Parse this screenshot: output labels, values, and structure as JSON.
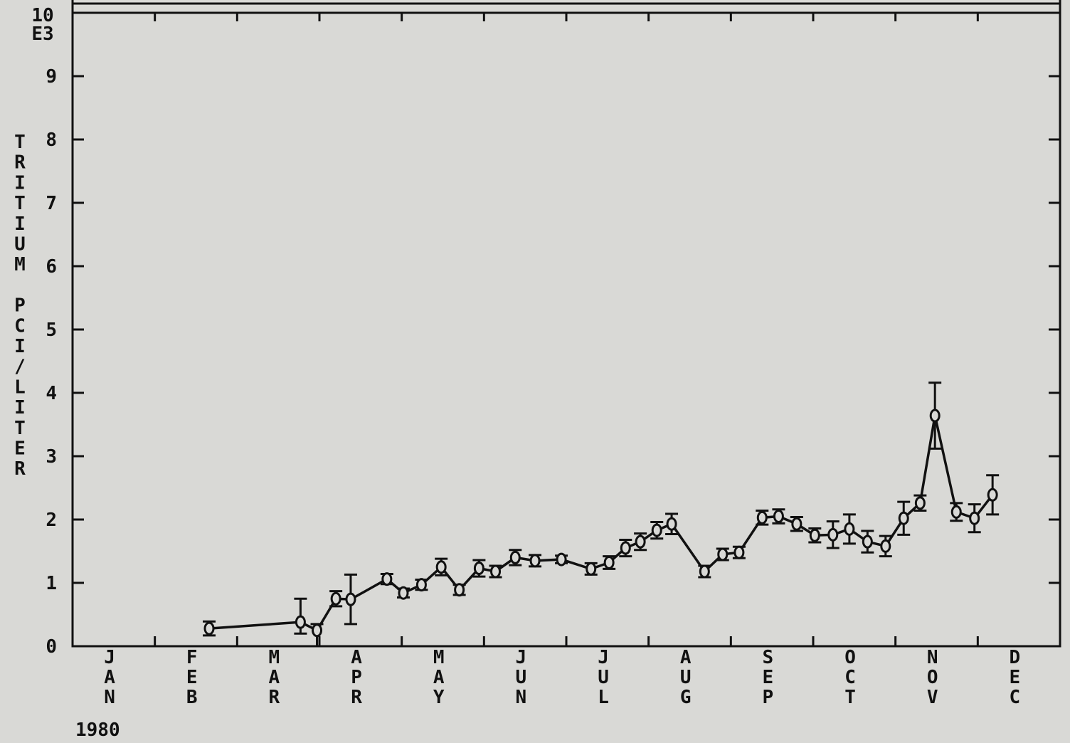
{
  "chart_data": {
    "type": "line",
    "title": "",
    "ylabel": "TRITIUM PCI/LITER",
    "ylabel_chars": [
      "T",
      "R",
      "I",
      "T",
      "I",
      "U",
      "M",
      "",
      "P",
      "C",
      "I",
      "/",
      "L",
      "I",
      "T",
      "E",
      "R"
    ],
    "y_multiplier_label": [
      "10",
      "E3"
    ],
    "xlabel": "",
    "year_label": "1980",
    "ylim": [
      0,
      10
    ],
    "xlim": [
      0,
      12
    ],
    "y_ticks": [
      "0",
      "1",
      "2",
      "3",
      "4",
      "5",
      "6",
      "7",
      "8",
      "9"
    ],
    "months": [
      {
        "label": "JAN",
        "letters": [
          "J",
          "A",
          "N"
        ]
      },
      {
        "label": "FEB",
        "letters": [
          "F",
          "E",
          "B"
        ]
      },
      {
        "label": "MAR",
        "letters": [
          "M",
          "A",
          "R"
        ]
      },
      {
        "label": "APR",
        "letters": [
          "A",
          "P",
          "R"
        ]
      },
      {
        "label": "MAY",
        "letters": [
          "M",
          "A",
          "Y"
        ]
      },
      {
        "label": "JUN",
        "letters": [
          "J",
          "U",
          "N"
        ]
      },
      {
        "label": "JUL",
        "letters": [
          "J",
          "U",
          "L"
        ]
      },
      {
        "label": "AUG",
        "letters": [
          "A",
          "U",
          "G"
        ]
      },
      {
        "label": "SEP",
        "letters": [
          "S",
          "E",
          "P"
        ]
      },
      {
        "label": "OCT",
        "letters": [
          "O",
          "C",
          "T"
        ]
      },
      {
        "label": "NOV",
        "letters": [
          "N",
          "O",
          "V"
        ]
      },
      {
        "label": "DEC",
        "letters": [
          "D",
          "E",
          "C"
        ]
      }
    ],
    "grid": false,
    "marker": "circle",
    "series": [
      {
        "points": [
          {
            "x": 1.66,
            "y": 0.28,
            "lo": 0.17,
            "hi": 0.39
          },
          {
            "x": 2.77,
            "y": 0.38,
            "lo": 0.2,
            "hi": 0.75
          },
          {
            "x": 2.97,
            "y": 0.25,
            "lo": 0.0,
            "hi": 0.35
          },
          {
            "x": 3.2,
            "y": 0.75,
            "lo": 0.63,
            "hi": 0.87
          },
          {
            "x": 3.38,
            "y": 0.74,
            "lo": 0.35,
            "hi": 1.13
          },
          {
            "x": 3.82,
            "y": 1.06,
            "lo": 0.98,
            "hi": 1.14
          },
          {
            "x": 4.02,
            "y": 0.84,
            "lo": 0.77,
            "hi": 0.91
          },
          {
            "x": 4.24,
            "y": 0.97,
            "lo": 0.89,
            "hi": 1.05
          },
          {
            "x": 4.48,
            "y": 1.25,
            "lo": 1.12,
            "hi": 1.38
          },
          {
            "x": 4.7,
            "y": 0.89,
            "lo": 0.81,
            "hi": 0.97
          },
          {
            "x": 4.94,
            "y": 1.23,
            "lo": 1.1,
            "hi": 1.36
          },
          {
            "x": 5.14,
            "y": 1.18,
            "lo": 1.09,
            "hi": 1.27
          },
          {
            "x": 5.38,
            "y": 1.4,
            "lo": 1.28,
            "hi": 1.52
          },
          {
            "x": 5.62,
            "y": 1.35,
            "lo": 1.26,
            "hi": 1.44
          },
          {
            "x": 5.94,
            "y": 1.37,
            "lo": 1.31,
            "hi": 1.43
          },
          {
            "x": 6.3,
            "y": 1.22,
            "lo": 1.13,
            "hi": 1.31
          },
          {
            "x": 6.52,
            "y": 1.32,
            "lo": 1.22,
            "hi": 1.42
          },
          {
            "x": 6.72,
            "y": 1.55,
            "lo": 1.42,
            "hi": 1.68
          },
          {
            "x": 6.9,
            "y": 1.65,
            "lo": 1.52,
            "hi": 1.78
          },
          {
            "x": 7.1,
            "y": 1.83,
            "lo": 1.7,
            "hi": 1.96
          },
          {
            "x": 7.28,
            "y": 1.93,
            "lo": 1.77,
            "hi": 2.09
          },
          {
            "x": 7.68,
            "y": 1.18,
            "lo": 1.09,
            "hi": 1.27
          },
          {
            "x": 7.9,
            "y": 1.45,
            "lo": 1.36,
            "hi": 1.54
          },
          {
            "x": 8.1,
            "y": 1.48,
            "lo": 1.39,
            "hi": 1.57
          },
          {
            "x": 8.38,
            "y": 2.03,
            "lo": 1.92,
            "hi": 2.14
          },
          {
            "x": 8.58,
            "y": 2.05,
            "lo": 1.94,
            "hi": 2.16
          },
          {
            "x": 8.8,
            "y": 1.93,
            "lo": 1.82,
            "hi": 2.04
          },
          {
            "x": 9.02,
            "y": 1.75,
            "lo": 1.64,
            "hi": 1.86
          },
          {
            "x": 9.24,
            "y": 1.76,
            "lo": 1.55,
            "hi": 1.97
          },
          {
            "x": 9.44,
            "y": 1.85,
            "lo": 1.62,
            "hi": 2.08
          },
          {
            "x": 9.66,
            "y": 1.65,
            "lo": 1.48,
            "hi": 1.82
          },
          {
            "x": 9.88,
            "y": 1.58,
            "lo": 1.42,
            "hi": 1.74
          },
          {
            "x": 10.1,
            "y": 2.02,
            "lo": 1.76,
            "hi": 2.28
          },
          {
            "x": 10.3,
            "y": 2.26,
            "lo": 2.14,
            "hi": 2.38
          },
          {
            "x": 10.48,
            "y": 3.64,
            "lo": 3.12,
            "hi": 4.16
          },
          {
            "x": 10.74,
            "y": 2.12,
            "lo": 1.98,
            "hi": 2.26
          },
          {
            "x": 10.96,
            "y": 2.02,
            "lo": 1.8,
            "hi": 2.24
          },
          {
            "x": 11.18,
            "y": 2.39,
            "lo": 2.08,
            "hi": 2.7
          }
        ]
      }
    ]
  }
}
